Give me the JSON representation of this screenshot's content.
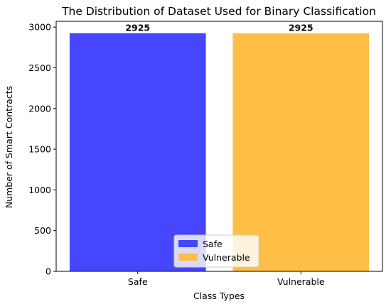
{
  "chart_data": {
    "type": "bar",
    "title": "The Distribution of Dataset Used for Binary Classification",
    "xlabel": "Class Types",
    "ylabel": "Number of Smart Contracts",
    "categories": [
      "Safe",
      "Vulnerable"
    ],
    "values": [
      2925,
      2925
    ],
    "data_labels": [
      "2925",
      "2925"
    ],
    "colors": [
      "#4646ff",
      "#ffbe46"
    ],
    "ylim": [
      0,
      3071
    ],
    "yticks": [
      0,
      500,
      1000,
      1500,
      2000,
      2500,
      3000
    ],
    "grid": false,
    "legend": {
      "placement": "bottom-center",
      "entries": [
        {
          "label": "Safe",
          "color": "#4646ff"
        },
        {
          "label": "Vulnerable",
          "color": "#ffbe46"
        }
      ]
    }
  }
}
